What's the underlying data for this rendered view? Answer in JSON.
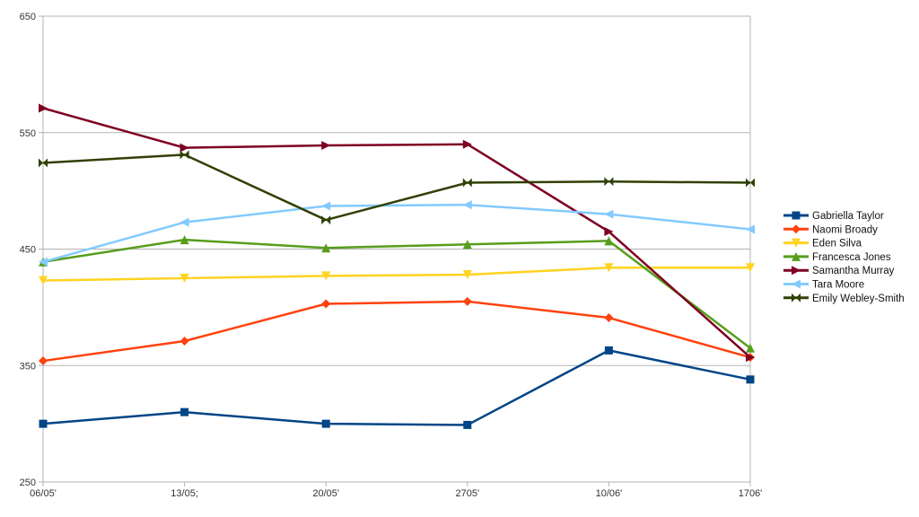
{
  "chart_data": {
    "type": "line",
    "title": "",
    "xlabel": "",
    "ylabel": "",
    "ylim": [
      250,
      650
    ],
    "yticks": [
      "250",
      "350",
      "450",
      "550",
      "650"
    ],
    "grid": true,
    "legend_position": "right",
    "categories": [
      "06/05'",
      "13/05;",
      "20/05'",
      "2705'",
      "10/06'",
      "1706'"
    ],
    "series": [
      {
        "name": "Gabriella Taylor",
        "color": "#004586",
        "marker": "square",
        "values": [
          300,
          310,
          300,
          299,
          363,
          338
        ]
      },
      {
        "name": "Naomi Broady",
        "color": "#ff420e",
        "marker": "diamond",
        "values": [
          354,
          371,
          403,
          405,
          391,
          357
        ]
      },
      {
        "name": "Eden Silva",
        "color": "#ffd320",
        "marker": "triangle-down",
        "values": [
          423,
          425,
          427,
          428,
          434,
          434
        ]
      },
      {
        "name": "Francesca Jones",
        "color": "#579d1c",
        "marker": "triangle-up",
        "values": [
          439,
          458,
          451,
          454,
          457,
          365
        ]
      },
      {
        "name": "Samantha Murray",
        "color": "#7e0021",
        "marker": "triangle-right",
        "values": [
          571,
          537,
          539,
          540,
          465,
          357
        ]
      },
      {
        "name": "Tara Moore",
        "color": "#83caff",
        "marker": "triangle-left",
        "values": [
          439,
          473,
          487,
          488,
          480,
          467
        ]
      },
      {
        "name": "Emily Webley-Smith",
        "color": "#314004",
        "marker": "bowtie",
        "values": [
          524,
          531,
          475,
          507,
          508,
          507
        ]
      }
    ]
  }
}
